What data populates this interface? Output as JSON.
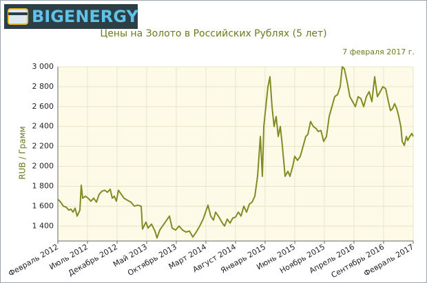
{
  "logo": "BIGENERGY",
  "chart_data": {
    "type": "line",
    "title": "Цены на Золото в Российских Рублях (5 лет)",
    "subtitle": "7 февраля 2017 г.",
    "ylabel": "RUB / Грамм",
    "grid": true,
    "color": "#7f8c21",
    "xlim": [
      0,
      60
    ],
    "ylim": [
      1250,
      3000
    ],
    "xticks": [
      {
        "value": 0,
        "label": "Февраль 2012"
      },
      {
        "value": 5,
        "label": "Июль 2012"
      },
      {
        "value": 10,
        "label": "Декабрь 2012"
      },
      {
        "value": 15,
        "label": "Май 2013"
      },
      {
        "value": 20,
        "label": "Октябрь 2013"
      },
      {
        "value": 25,
        "label": "Март 2014"
      },
      {
        "value": 30,
        "label": "Август 2014"
      },
      {
        "value": 35,
        "label": "Январь 2015"
      },
      {
        "value": 40,
        "label": "Июнь 2015"
      },
      {
        "value": 45,
        "label": "Ноябрь 2015"
      },
      {
        "value": 50,
        "label": "Апрель 2016"
      },
      {
        "value": 55,
        "label": "Сентябрь 2016"
      },
      {
        "value": 60,
        "label": "Февраль 2017"
      }
    ],
    "yticks": [
      {
        "value": 1400,
        "label": "1 400"
      },
      {
        "value": 1600,
        "label": "1 600"
      },
      {
        "value": 1800,
        "label": "1 800"
      },
      {
        "value": 2000,
        "label": "2 000"
      },
      {
        "value": 2200,
        "label": "2 200"
      },
      {
        "value": 2400,
        "label": "2 400"
      },
      {
        "value": 2600,
        "label": "2 600"
      },
      {
        "value": 2800,
        "label": "2 800"
      },
      {
        "value": 3000,
        "label": "3 000"
      }
    ],
    "x": [
      0,
      0.47,
      0.93,
      1.4,
      1.86,
      2.21,
      2.56,
      2.91,
      3.26,
      3.72,
      3.95,
      4.19,
      4.65,
      5.12,
      5.58,
      6.05,
      6.51,
      6.98,
      7.44,
      7.91,
      8.37,
      8.84,
      9.19,
      9.53,
      9.88,
      10.23,
      10.7,
      11.16,
      11.74,
      12.33,
      12.91,
      13.49,
      14.07,
      14.3,
      14.88,
      15.23,
      15.81,
      16.4,
      16.74,
      17.21,
      17.79,
      18.37,
      18.84,
      19.3,
      19.88,
      20.47,
      21.05,
      21.63,
      22.21,
      22.79,
      23.37,
      23.95,
      24.53,
      25,
      25.35,
      25.81,
      26.28,
      26.63,
      27.21,
      27.67,
      28.14,
      28.6,
      29.07,
      29.53,
      30,
      30.47,
      30.93,
      31.4,
      31.86,
      32.33,
      32.79,
      33.26,
      33.72,
      34.19,
      34.53,
      34.77,
      35.12,
      35.47,
      35.81,
      36.16,
      36.51,
      36.86,
      37.21,
      37.56,
      37.91,
      38.37,
      38.84,
      39.19,
      39.65,
      40,
      40.47,
      40.93,
      41.4,
      41.86,
      42.21,
      42.67,
      43.14,
      43.6,
      43.95,
      44.42,
      44.88,
      45.35,
      45.81,
      46.28,
      46.74,
      47.21,
      47.67,
      48.02,
      48.37,
      48.84,
      49.3,
      49.77,
      50.23,
      50.7,
      51.16,
      51.63,
      52.09,
      52.56,
      53.02,
      53.49,
      53.95,
      54.42,
      54.88,
      55.35,
      55.81,
      56.16,
      56.51,
      56.86,
      57.21,
      57.56,
      57.91,
      58.14,
      58.49,
      58.84,
      59.07,
      59.42,
      59.77,
      60
    ],
    "values": [
      1670,
      1640,
      1600,
      1590,
      1560,
      1570,
      1540,
      1580,
      1500,
      1560,
      1810,
      1680,
      1700,
      1680,
      1650,
      1680,
      1640,
      1720,
      1750,
      1760,
      1740,
      1770,
      1680,
      1700,
      1650,
      1760,
      1720,
      1680,
      1660,
      1640,
      1600,
      1610,
      1600,
      1370,
      1440,
      1380,
      1420,
      1350,
      1280,
      1360,
      1410,
      1460,
      1500,
      1380,
      1360,
      1400,
      1360,
      1340,
      1350,
      1290,
      1340,
      1400,
      1470,
      1550,
      1610,
      1500,
      1460,
      1540,
      1490,
      1440,
      1400,
      1470,
      1430,
      1480,
      1490,
      1540,
      1500,
      1600,
      1540,
      1620,
      1640,
      1700,
      1900,
      2300,
      1900,
      2400,
      2600,
      2800,
      2900,
      2600,
      2400,
      2500,
      2300,
      2400,
      2200,
      1900,
      1950,
      1900,
      2000,
      2100,
      2060,
      2100,
      2200,
      2300,
      2320,
      2450,
      2400,
      2380,
      2350,
      2360,
      2250,
      2300,
      2500,
      2600,
      2700,
      2720,
      2800,
      3000,
      2980,
      2850,
      2700,
      2650,
      2600,
      2700,
      2680,
      2600,
      2700,
      2750,
      2650,
      2900,
      2700,
      2750,
      2800,
      2780,
      2650,
      2560,
      2580,
      2630,
      2580,
      2500,
      2400,
      2250,
      2210,
      2300,
      2260,
      2300,
      2330,
      2300
    ]
  }
}
